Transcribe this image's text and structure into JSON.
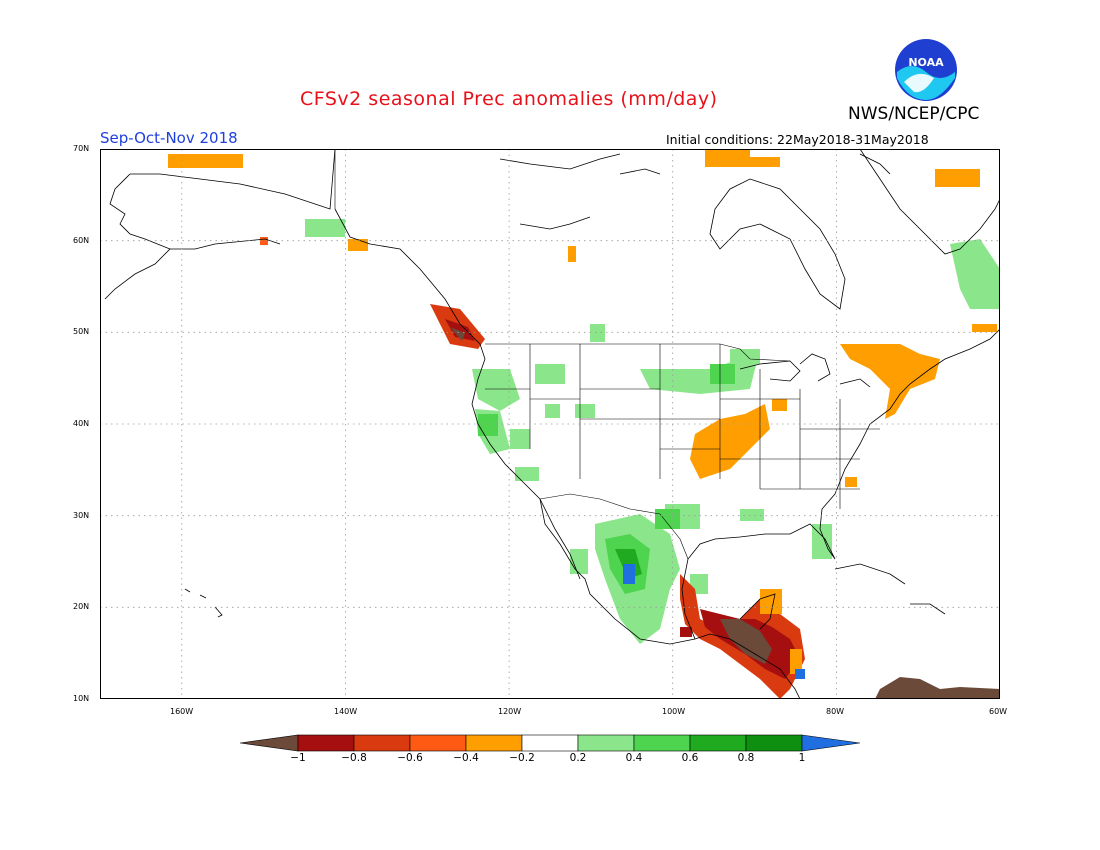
{
  "header": {
    "title": "CFSv2 seasonal Prec anomalies (mm/day)",
    "org": "NWS/NCEP/CPC",
    "season": "Sep-Oct-Nov 2018",
    "init": "Initial conditions: 22May2018-31May2018",
    "logo_text": "NOAA"
  },
  "map": {
    "lon_range": [
      -170,
      -60
    ],
    "lat_range": [
      10,
      70
    ],
    "lat_labels": [
      "70N",
      "60N",
      "50N",
      "40N",
      "30N",
      "20N",
      "10N"
    ],
    "lon_labels": [
      "160W",
      "140W",
      "120W",
      "100W",
      "80W",
      "60W"
    ]
  },
  "colorbar": {
    "labels": [
      "−1",
      "−0.8",
      "−0.6",
      "−0.4",
      "−0.2",
      "0.2",
      "0.4",
      "0.6",
      "0.8",
      "1"
    ],
    "colors": [
      "#6b4a3a",
      "#a50f0f",
      "#d93a0f",
      "#ff5a14",
      "#ff9e00",
      "#ffffff",
      "#8be68b",
      "#4fd44f",
      "#1faa1f",
      "#0f8f0f",
      "#1f6fe0"
    ]
  }
}
